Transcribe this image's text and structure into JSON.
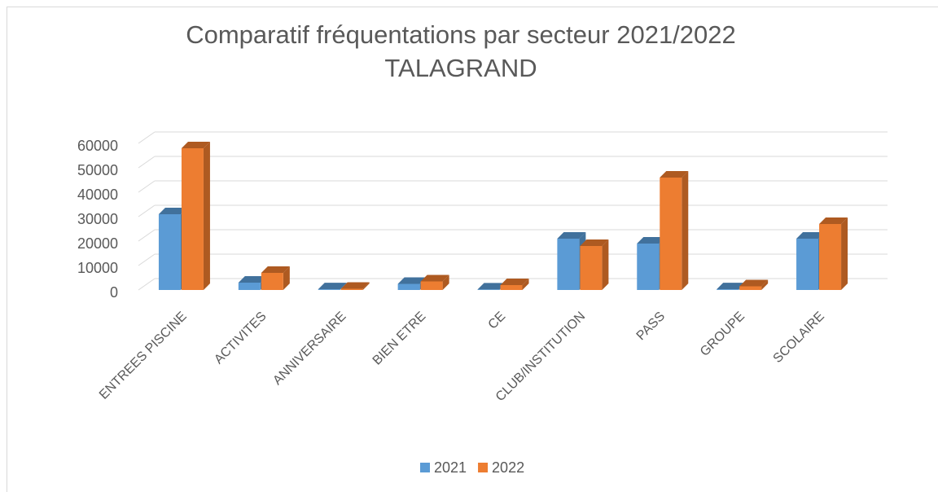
{
  "chart_data": {
    "type": "bar3d",
    "title": [
      "Comparatif fréquentations par secteur 2021/2022",
      "TALAGRAND"
    ],
    "categories": [
      "ENTREES PISCINE",
      "ACTIVITES",
      "ANNIVERSAIRE",
      "BIEN ETRE",
      "CE",
      "CLUB/INSTITUTION",
      "PASS",
      "GROUPE",
      "SCOLAIRE"
    ],
    "series": [
      {
        "name": "2021",
        "color": "#5b9bd5",
        "side": "#41719c",
        "values": [
          31000,
          3000,
          300,
          2500,
          200,
          21000,
          19000,
          300,
          21000
        ]
      },
      {
        "name": "2022",
        "color": "#ed7d31",
        "side": "#ae5a21",
        "values": [
          58000,
          7000,
          500,
          3500,
          2000,
          18000,
          46000,
          1500,
          27000
        ]
      }
    ],
    "ylim": [
      0,
      60000
    ],
    "yticks": [
      0,
      10000,
      20000,
      30000,
      40000,
      50000,
      60000
    ],
    "grid": true,
    "legend": "bottom"
  }
}
